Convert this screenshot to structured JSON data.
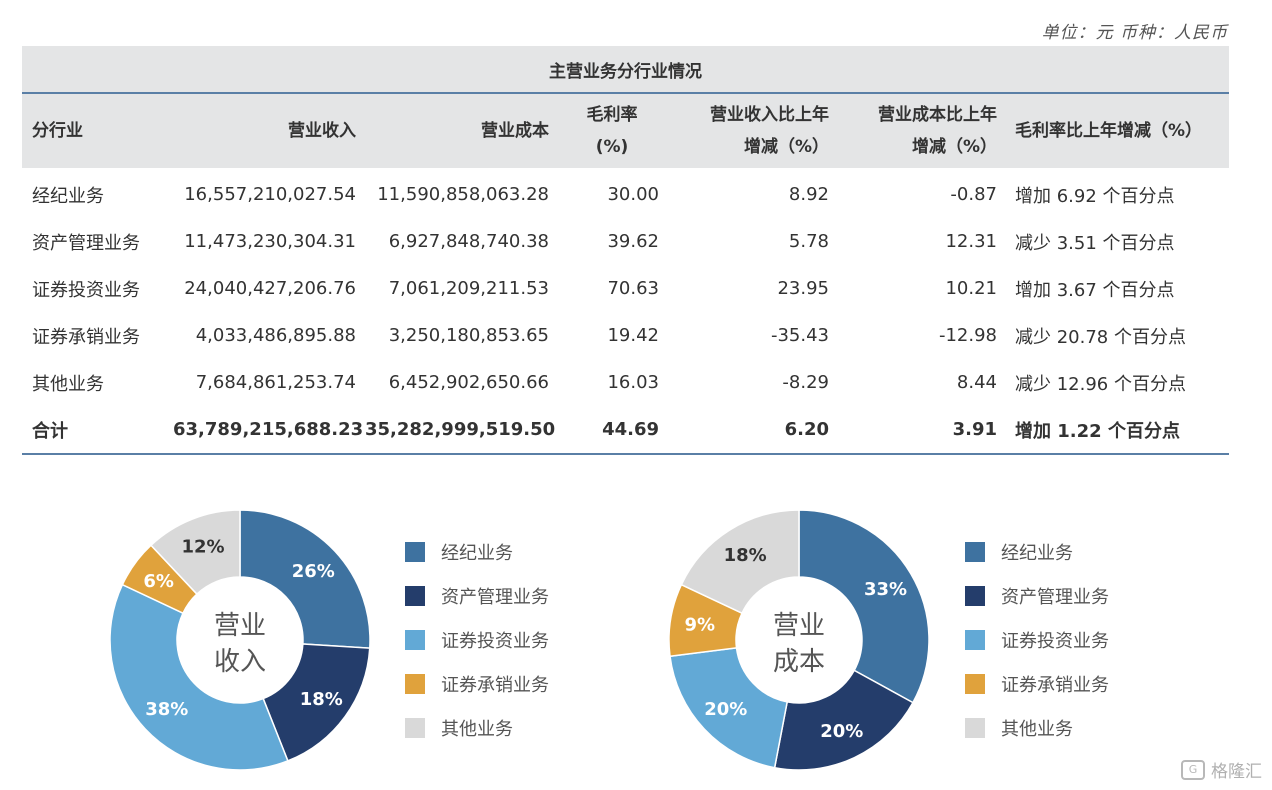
{
  "unit_text": "单位：元  币种：人民币",
  "table": {
    "caption": "主营业务分行业情况",
    "headers": {
      "industry": "分行业",
      "revenue": "营业收入",
      "cost": "营业成本",
      "margin_1": "毛利率",
      "margin_2": "(%)",
      "rev_change_1": "营业收入比上年",
      "rev_change_2": "增减（%）",
      "cost_change_1": "营业成本比上年",
      "cost_change_2": "增减（%）",
      "margin_change": "毛利率比上年增减（%）"
    },
    "rows": [
      {
        "industry": "经纪业务",
        "revenue": "16,557,210,027.54",
        "cost": "11,590,858,063.28",
        "margin": "30.00",
        "rev_change": "8.92",
        "cost_change": "-0.87",
        "margin_change": "增加 6.92 个百分点"
      },
      {
        "industry": "资产管理业务",
        "revenue": "11,473,230,304.31",
        "cost": "6,927,848,740.38",
        "margin": "39.62",
        "rev_change": "5.78",
        "cost_change": "12.31",
        "margin_change": "减少 3.51 个百分点"
      },
      {
        "industry": "证券投资业务",
        "revenue": "24,040,427,206.76",
        "cost": "7,061,209,211.53",
        "margin": "70.63",
        "rev_change": "23.95",
        "cost_change": "10.21",
        "margin_change": "增加 3.67 个百分点"
      },
      {
        "industry": "证券承销业务",
        "revenue": "4,033,486,895.88",
        "cost": "3,250,180,853.65",
        "margin": "19.42",
        "rev_change": "-35.43",
        "cost_change": "-12.98",
        "margin_change": "减少 20.78 个百分点"
      },
      {
        "industry": "其他业务",
        "revenue": "7,684,861,253.74",
        "cost": "6,452,902,650.66",
        "margin": "16.03",
        "rev_change": "-8.29",
        "cost_change": "8.44",
        "margin_change": "减少 12.96 个百分点"
      }
    ],
    "total": {
      "industry": "合计",
      "revenue": "63,789,215,688.23",
      "cost": "35,282,999,519.50",
      "margin": "44.69",
      "rev_change": "6.20",
      "cost_change": "3.91",
      "margin_change": "增加 1.22 个百分点"
    }
  },
  "chart_data": [
    {
      "type": "pie",
      "center_label": [
        "营业",
        "收入"
      ],
      "categories": [
        "经纪业务",
        "资产管理业务",
        "证券投资业务",
        "证券承销业务",
        "其他业务"
      ],
      "values": [
        26,
        18,
        38,
        6,
        12
      ],
      "labels": [
        "26%",
        "18%",
        "38%",
        "6%",
        "12%"
      ],
      "colors": [
        "#3e72a0",
        "#243d6b",
        "#62a9d6",
        "#e0a23c",
        "#d9d9d9"
      ]
    },
    {
      "type": "pie",
      "center_label": [
        "营业",
        "成本"
      ],
      "categories": [
        "经纪业务",
        "资产管理业务",
        "证券投资业务",
        "证券承销业务",
        "其他业务"
      ],
      "values": [
        33,
        20,
        20,
        9,
        18
      ],
      "labels": [
        "33%",
        "20%",
        "20%",
        "9%",
        "18%"
      ],
      "colors": [
        "#3e72a0",
        "#243d6b",
        "#62a9d6",
        "#e0a23c",
        "#d9d9d9"
      ]
    }
  ],
  "watermark": "格隆汇"
}
